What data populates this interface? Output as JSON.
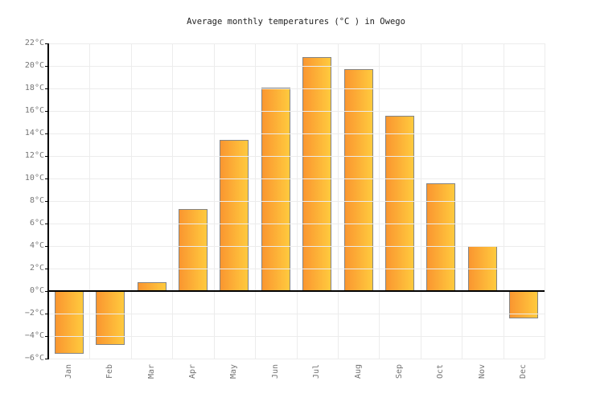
{
  "chart_data": {
    "type": "bar",
    "title": "Average monthly temperatures (°C ) in Owego",
    "categories": [
      "Jan",
      "Feb",
      "Mar",
      "Apr",
      "May",
      "Jun",
      "Jul",
      "Aug",
      "Sep",
      "Oct",
      "Nov",
      "Dec"
    ],
    "values": [
      -5.6,
      -4.8,
      0.8,
      7.3,
      13.4,
      18.1,
      20.8,
      19.7,
      15.6,
      9.6,
      4,
      -2.4
    ],
    "xlabel": "",
    "ylabel": "",
    "ylim": [
      -6,
      22
    ],
    "ytick_step": 2,
    "ytick_labels": [
      "22°C",
      "20°C",
      "18°C",
      "16°C",
      "14°C",
      "12°C",
      "10°C",
      "8°C",
      "6°C",
      "4°C",
      "2°C",
      "0°C",
      "−2°C",
      "−4°C",
      "−6°C"
    ],
    "grid": true,
    "legend": false,
    "colors": {
      "bar_gradient_left": "#fa9630",
      "bar_gradient_right": "#ffca3e",
      "bar_border": "#848484",
      "grid": "#ececec",
      "axis": "#000000",
      "tick_label": "#757575",
      "title": "#222222",
      "background": "#ffffff"
    }
  }
}
